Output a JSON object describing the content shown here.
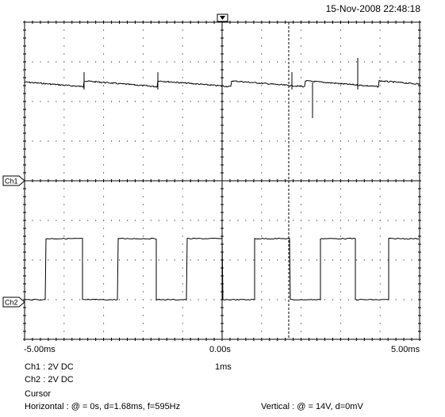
{
  "header": {
    "timestamp": "15-Nov-2008 22:48:18"
  },
  "channels": [
    {
      "marker": "Ch1",
      "setting": "Ch1 : 2V  DC",
      "volts_per_div": 2,
      "coupling": "DC"
    },
    {
      "marker": "Ch2",
      "setting": "Ch2 : 2V  DC",
      "volts_per_div": 2,
      "coupling": "DC"
    }
  ],
  "x_axis": {
    "left_label": "-5.00ms",
    "center_label": "0.00s",
    "right_label": "5.00ms"
  },
  "timebase": "1ms",
  "cursor": {
    "title": "Cursor",
    "horizontal": "Horizontal : @ = 0s, d=1.68ms, f=595Hz",
    "vertical": "Vertical : @ = 14V, d=0mV"
  },
  "colors": {
    "trace": "#000000",
    "grid": "#000000",
    "background": "#ffffff"
  },
  "icons": {
    "trigger_marker": "trigger-position-icon"
  }
}
